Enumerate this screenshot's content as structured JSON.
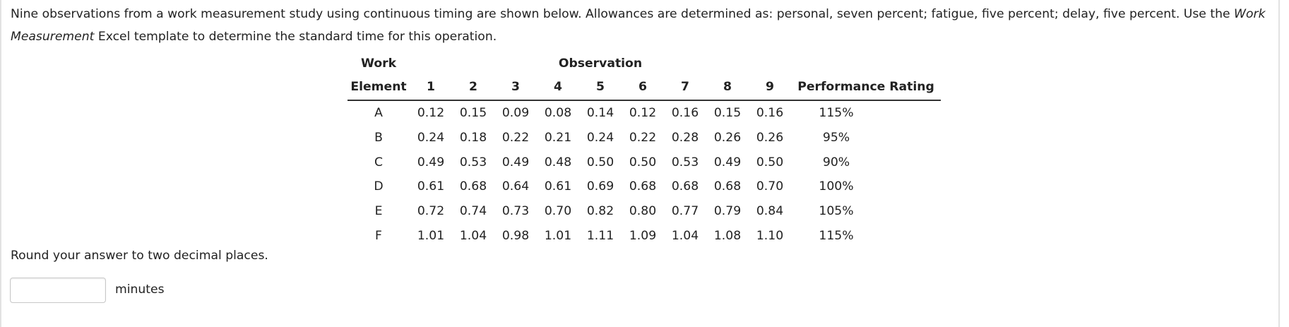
{
  "question": {
    "text_part1": "Nine observations from a work measurement study using continuous timing are shown below. Allowances are determined as: personal, seven percent; fatigue, five percent; delay, five percent. Use the ",
    "template_name": "Work Measurement",
    "text_part2": " Excel template to determine the standard time for this operation."
  },
  "table": {
    "header_top": {
      "element": "Work",
      "observation": "Observation"
    },
    "header_bottom": {
      "element": "Element",
      "observations": [
        "1",
        "2",
        "3",
        "4",
        "5",
        "6",
        "7",
        "8",
        "9"
      ],
      "performance": "Performance Rating"
    },
    "rows": [
      {
        "element": "A",
        "obs": [
          "0.12",
          "0.15",
          "0.09",
          "0.08",
          "0.14",
          "0.12",
          "0.16",
          "0.15",
          "0.16"
        ],
        "rating": "115%"
      },
      {
        "element": "B",
        "obs": [
          "0.24",
          "0.18",
          "0.22",
          "0.21",
          "0.24",
          "0.22",
          "0.28",
          "0.26",
          "0.26"
        ],
        "rating": "95%"
      },
      {
        "element": "C",
        "obs": [
          "0.49",
          "0.53",
          "0.49",
          "0.48",
          "0.50",
          "0.50",
          "0.53",
          "0.49",
          "0.50"
        ],
        "rating": "90%"
      },
      {
        "element": "D",
        "obs": [
          "0.61",
          "0.68",
          "0.64",
          "0.61",
          "0.69",
          "0.68",
          "0.68",
          "0.68",
          "0.70"
        ],
        "rating": "100%"
      },
      {
        "element": "E",
        "obs": [
          "0.72",
          "0.74",
          "0.73",
          "0.70",
          "0.82",
          "0.80",
          "0.77",
          "0.79",
          "0.84"
        ],
        "rating": "105%"
      },
      {
        "element": "F",
        "obs": [
          "1.01",
          "1.04",
          "0.98",
          "1.01",
          "1.11",
          "1.09",
          "1.04",
          "1.08",
          "1.10"
        ],
        "rating": "115%"
      }
    ]
  },
  "answer": {
    "instruction": "Round your answer to two decimal places.",
    "value": "",
    "placeholder": "",
    "unit": "minutes"
  }
}
